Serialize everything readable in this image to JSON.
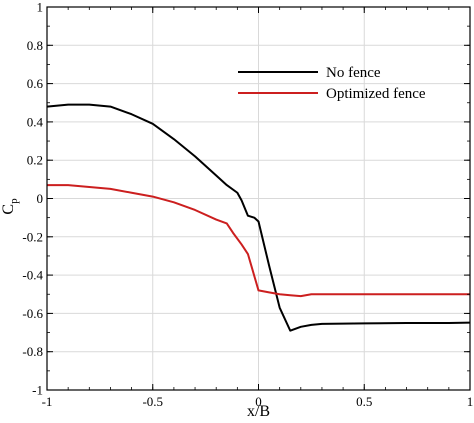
{
  "chart_data": {
    "type": "line",
    "title": "",
    "xlabel": "x/B",
    "ylabel": "C",
    "ylabel_subscript": "p",
    "xlim": [
      -1,
      1
    ],
    "ylim": [
      -1,
      1
    ],
    "x_ticks": [
      -1,
      -0.5,
      0,
      0.5,
      1
    ],
    "x_tick_labels": [
      "-1",
      "-0.5",
      "0",
      "0.5",
      "1"
    ],
    "y_ticks": [
      -1,
      -0.8,
      -0.6,
      -0.4,
      -0.2,
      0,
      0.2,
      0.4,
      0.6,
      0.8,
      1
    ],
    "y_tick_labels": [
      "-1",
      "-0.8",
      "-0.6",
      "-0.4",
      "-0.2",
      "0",
      "0.2",
      "0.4",
      "0.6",
      "0.8",
      "1"
    ],
    "grid": true,
    "legend_position": "top-right",
    "series": [
      {
        "name": "No fence",
        "color": "#000000",
        "x": [
          -1.0,
          -0.9,
          -0.8,
          -0.7,
          -0.6,
          -0.5,
          -0.4,
          -0.3,
          -0.2,
          -0.15,
          -0.1,
          -0.08,
          -0.05,
          -0.02,
          0.0,
          0.05,
          0.1,
          0.15,
          0.2,
          0.25,
          0.3,
          0.5,
          0.7,
          0.9,
          1.0
        ],
        "y": [
          0.48,
          0.49,
          0.49,
          0.48,
          0.44,
          0.39,
          0.31,
          0.22,
          0.12,
          0.07,
          0.03,
          -0.01,
          -0.09,
          -0.1,
          -0.12,
          -0.35,
          -0.57,
          -0.69,
          -0.67,
          -0.66,
          -0.655,
          -0.652,
          -0.65,
          -0.65,
          -0.648
        ]
      },
      {
        "name": "Optimized fence",
        "color": "#cc1f1f",
        "x": [
          -1.0,
          -0.9,
          -0.8,
          -0.7,
          -0.6,
          -0.5,
          -0.4,
          -0.3,
          -0.2,
          -0.15,
          -0.12,
          -0.08,
          -0.05,
          0.0,
          0.05,
          0.1,
          0.15,
          0.2,
          0.25,
          0.3,
          0.5,
          0.7,
          0.9,
          1.0
        ],
        "y": [
          0.07,
          0.07,
          0.06,
          0.05,
          0.03,
          0.01,
          -0.02,
          -0.06,
          -0.11,
          -0.13,
          -0.18,
          -0.24,
          -0.29,
          -0.48,
          -0.49,
          -0.5,
          -0.505,
          -0.51,
          -0.5,
          -0.5,
          -0.5,
          -0.5,
          -0.5,
          -0.5
        ]
      }
    ]
  }
}
